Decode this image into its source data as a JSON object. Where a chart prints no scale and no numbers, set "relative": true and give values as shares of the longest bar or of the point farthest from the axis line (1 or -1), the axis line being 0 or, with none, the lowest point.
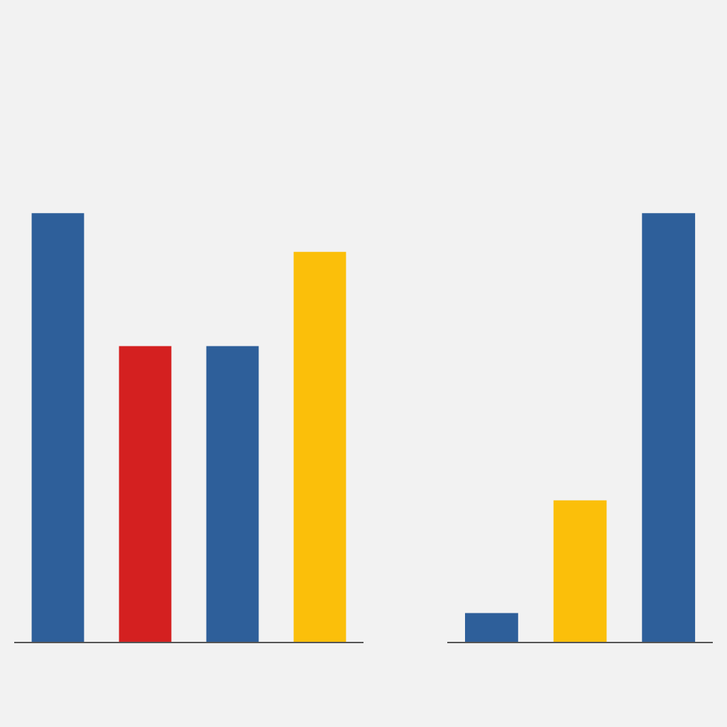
{
  "chart_data": [
    {
      "type": "bar",
      "relative": true,
      "categories": [
        null,
        null,
        null,
        null
      ],
      "values": [
        1,
        0.69,
        0.69,
        0.91
      ],
      "colors": [
        "#2e5f9a",
        "#d42020",
        "#2e5f9a",
        "#fbbf0a"
      ]
    },
    {
      "type": "bar",
      "relative": true,
      "categories": [
        null,
        null,
        null
      ],
      "values": [
        0.067,
        0.33,
        1
      ],
      "colors": [
        "#2e5f9a",
        "#fbbf0a",
        "#2e5f9a"
      ]
    }
  ]
}
